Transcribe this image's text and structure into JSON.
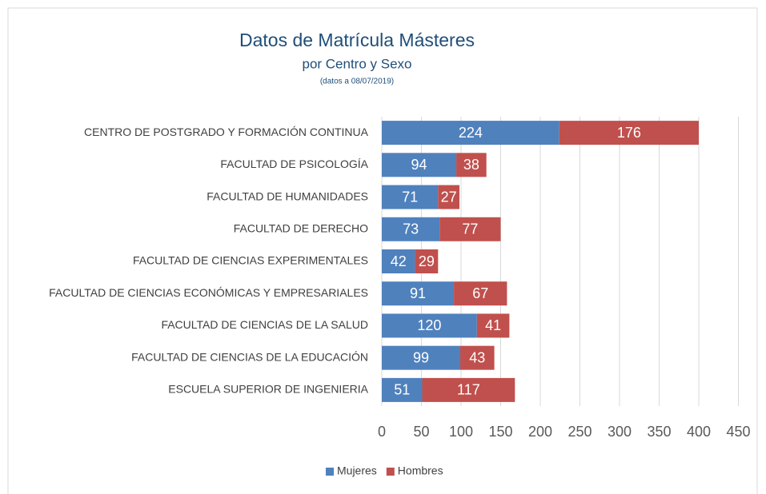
{
  "chart_data": {
    "type": "stacked_barh",
    "title": "Datos de Matrícula Másteres",
    "subtitle": "por Centro y Sexo",
    "note": "(datos a 08/07/2019)",
    "categories": [
      "CENTRO DE POSTGRADO Y FORMACIÓN CONTINUA",
      "FACULTAD DE PSICOLOGÍA",
      "FACULTAD DE HUMANIDADES",
      "FACULTAD DE DERECHO",
      "FACULTAD DE CIENCIAS EXPERIMENTALES",
      "FACULTAD DE CIENCIAS ECONÓMICAS Y EMPRESARIALES",
      "FACULTAD DE CIENCIAS DE LA SALUD",
      "FACULTAD DE CIENCIAS DE LA EDUCACIÓN",
      "ESCUELA SUPERIOR DE INGENIERIA"
    ],
    "series": [
      {
        "name": "Mujeres",
        "color": "#4f81bd",
        "values": [
          224,
          94,
          71,
          73,
          42,
          91,
          120,
          99,
          51
        ]
      },
      {
        "name": "Hombres",
        "color": "#c0504d",
        "values": [
          176,
          38,
          27,
          77,
          29,
          67,
          41,
          43,
          117
        ]
      }
    ],
    "xlim": [
      0,
      450
    ],
    "xticks": [
      0,
      50,
      100,
      150,
      200,
      250,
      300,
      350,
      400,
      450
    ],
    "grid": true,
    "legend": "bottom"
  }
}
